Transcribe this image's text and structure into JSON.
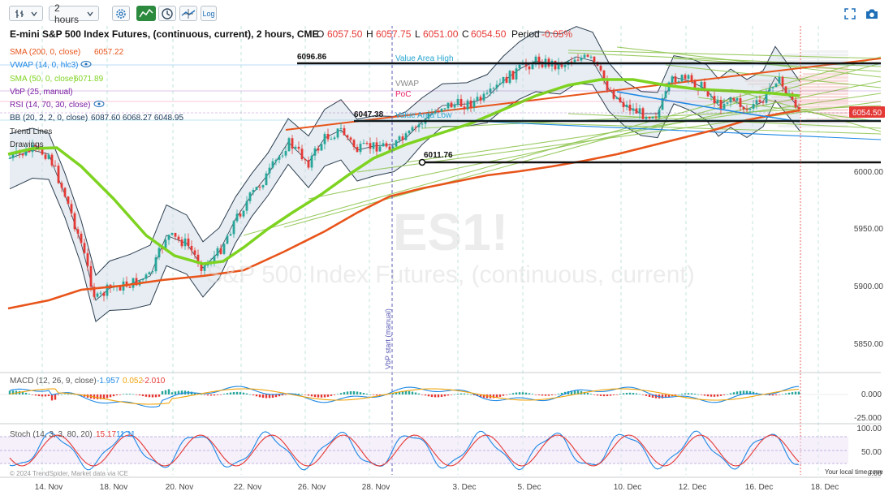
{
  "toolbar": {
    "interval": "2 hours",
    "log_label": "Log",
    "icons": [
      "bars-icon",
      "dropdown-chevron-icon",
      "settings-icon",
      "indicators-icon",
      "clock-icon",
      "drawing-tools-icon",
      "log-scale-icon",
      "fullscreen-icon",
      "camera-icon"
    ]
  },
  "header": {
    "title": "E-mini S&P 500 Index Futures, (continuous, current), 2 hours, CME",
    "o_label": "O",
    "o_value": "6057.50",
    "h_label": "H",
    "h_value": "6057.75",
    "l_label": "L",
    "l_value": "6051.00",
    "c_label": "C",
    "c_value": "6054.50",
    "period_label": "Period",
    "period_value": "-0.05%"
  },
  "legend": [
    {
      "name": "SMA (200, 0, close)",
      "value": "6057.22",
      "color": "#e8541a"
    },
    {
      "name": "VWAP (14, 0, hlc3)",
      "value": "",
      "color": "#1e88e5"
    },
    {
      "name": "SMA (50, 0, close)",
      "value": "6071.89",
      "color": "#7ed321"
    },
    {
      "name": "VbP (25, manual)",
      "value": "",
      "color": "#7b1fa2"
    },
    {
      "name": "RSI (14, 70, 30, close)",
      "value": "",
      "color": "#7b1fa2"
    },
    {
      "name": "BB (20, 2, 2, 0, close)",
      "value": "6087.60 6068.27 6048.95",
      "color": "#1a3a5a"
    },
    {
      "name": "Trend Lines",
      "value": "",
      "color": "#333333"
    },
    {
      "name": "Drawings",
      "value": "",
      "color": "#333333"
    }
  ],
  "watermark": {
    "symbol": "ES1!",
    "name": "S&P 500 Index Futures, (continuous, current)"
  },
  "price_axis": {
    "ticks": [
      "6000.00",
      "5950.00",
      "5900.00",
      "5850.00"
    ],
    "current_price": "6054.50",
    "current_color": "#e53935"
  },
  "annotations": {
    "level_6096": "6096.86",
    "level_6047": "6047.38",
    "level_6011": "6011.76",
    "value_area_high": "Value Area High",
    "value_area_low": "Value Area Low",
    "vwap": "VWAP",
    "poc": "PoC",
    "vbp_start": "VbP start (manual)"
  },
  "macd": {
    "label": "MACD (12, 26, 9, close)",
    "v1": "-1.957",
    "v2": "0.052",
    "v3": "-2.010",
    "ticks": [
      "0.000",
      "-25.000"
    ]
  },
  "stoch": {
    "label": "Stoch (14, 3, 3, 80, 20)",
    "v1": "15.17",
    "v2": "11.11",
    "ticks": [
      "100.00",
      "50.00",
      "0.00"
    ]
  },
  "copyright": "© 2024 TrendSpider, Market data via ICE",
  "timezone_label": "Your local time zone",
  "x_labels": [
    "14. Nov",
    "18. Nov",
    "20. Nov",
    "22. Nov",
    "26. Nov",
    "28. Nov",
    "3. Dec",
    "5. Dec",
    "10. Dec",
    "12. Dec",
    "16. Dec",
    "18. Dec"
  ]
}
